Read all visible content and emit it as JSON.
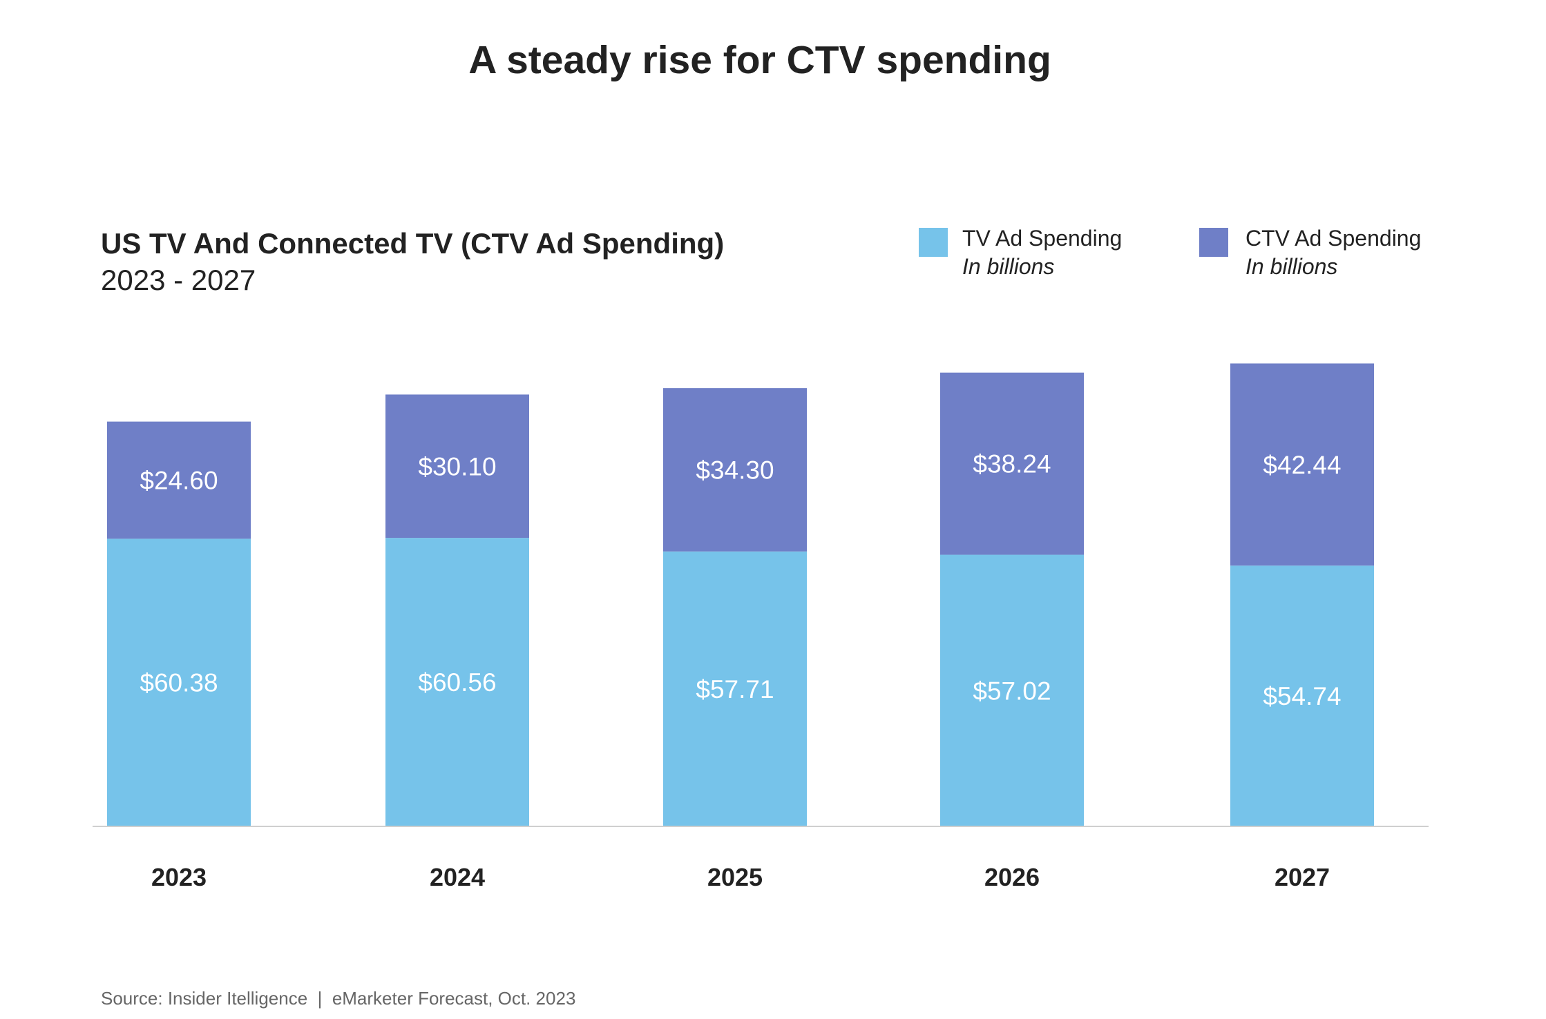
{
  "chart_data": {
    "type": "bar",
    "stacked": true,
    "title": "A steady rise for CTV spending",
    "subtitle": "US TV And Connected TV (CTV Ad Spending)",
    "date_range": "2023 - 2027",
    "categories": [
      "2023",
      "2024",
      "2025",
      "2026",
      "2027"
    ],
    "series": [
      {
        "name": "TV Ad Spending",
        "unit": "In billions",
        "color": "#76C3EA",
        "values": [
          60.38,
          60.56,
          57.71,
          57.02,
          54.74
        ],
        "labels": [
          "$60.38",
          "$60.56",
          "$57.71",
          "$57.02",
          "$54.74"
        ]
      },
      {
        "name": "CTV Ad Spending",
        "unit": "In billions",
        "color": "#6F7FC7",
        "values": [
          24.6,
          30.1,
          34.3,
          38.24,
          42.44
        ],
        "labels": [
          "$24.60",
          "$30.10",
          "$34.30",
          "$38.24",
          "$42.44"
        ]
      }
    ],
    "xlabel": "",
    "ylabel": "",
    "grid": false,
    "legend_position": "top-right",
    "source": "Source: Insider Itelligence  |  eMarketer Forecast, Oct. 2023"
  }
}
